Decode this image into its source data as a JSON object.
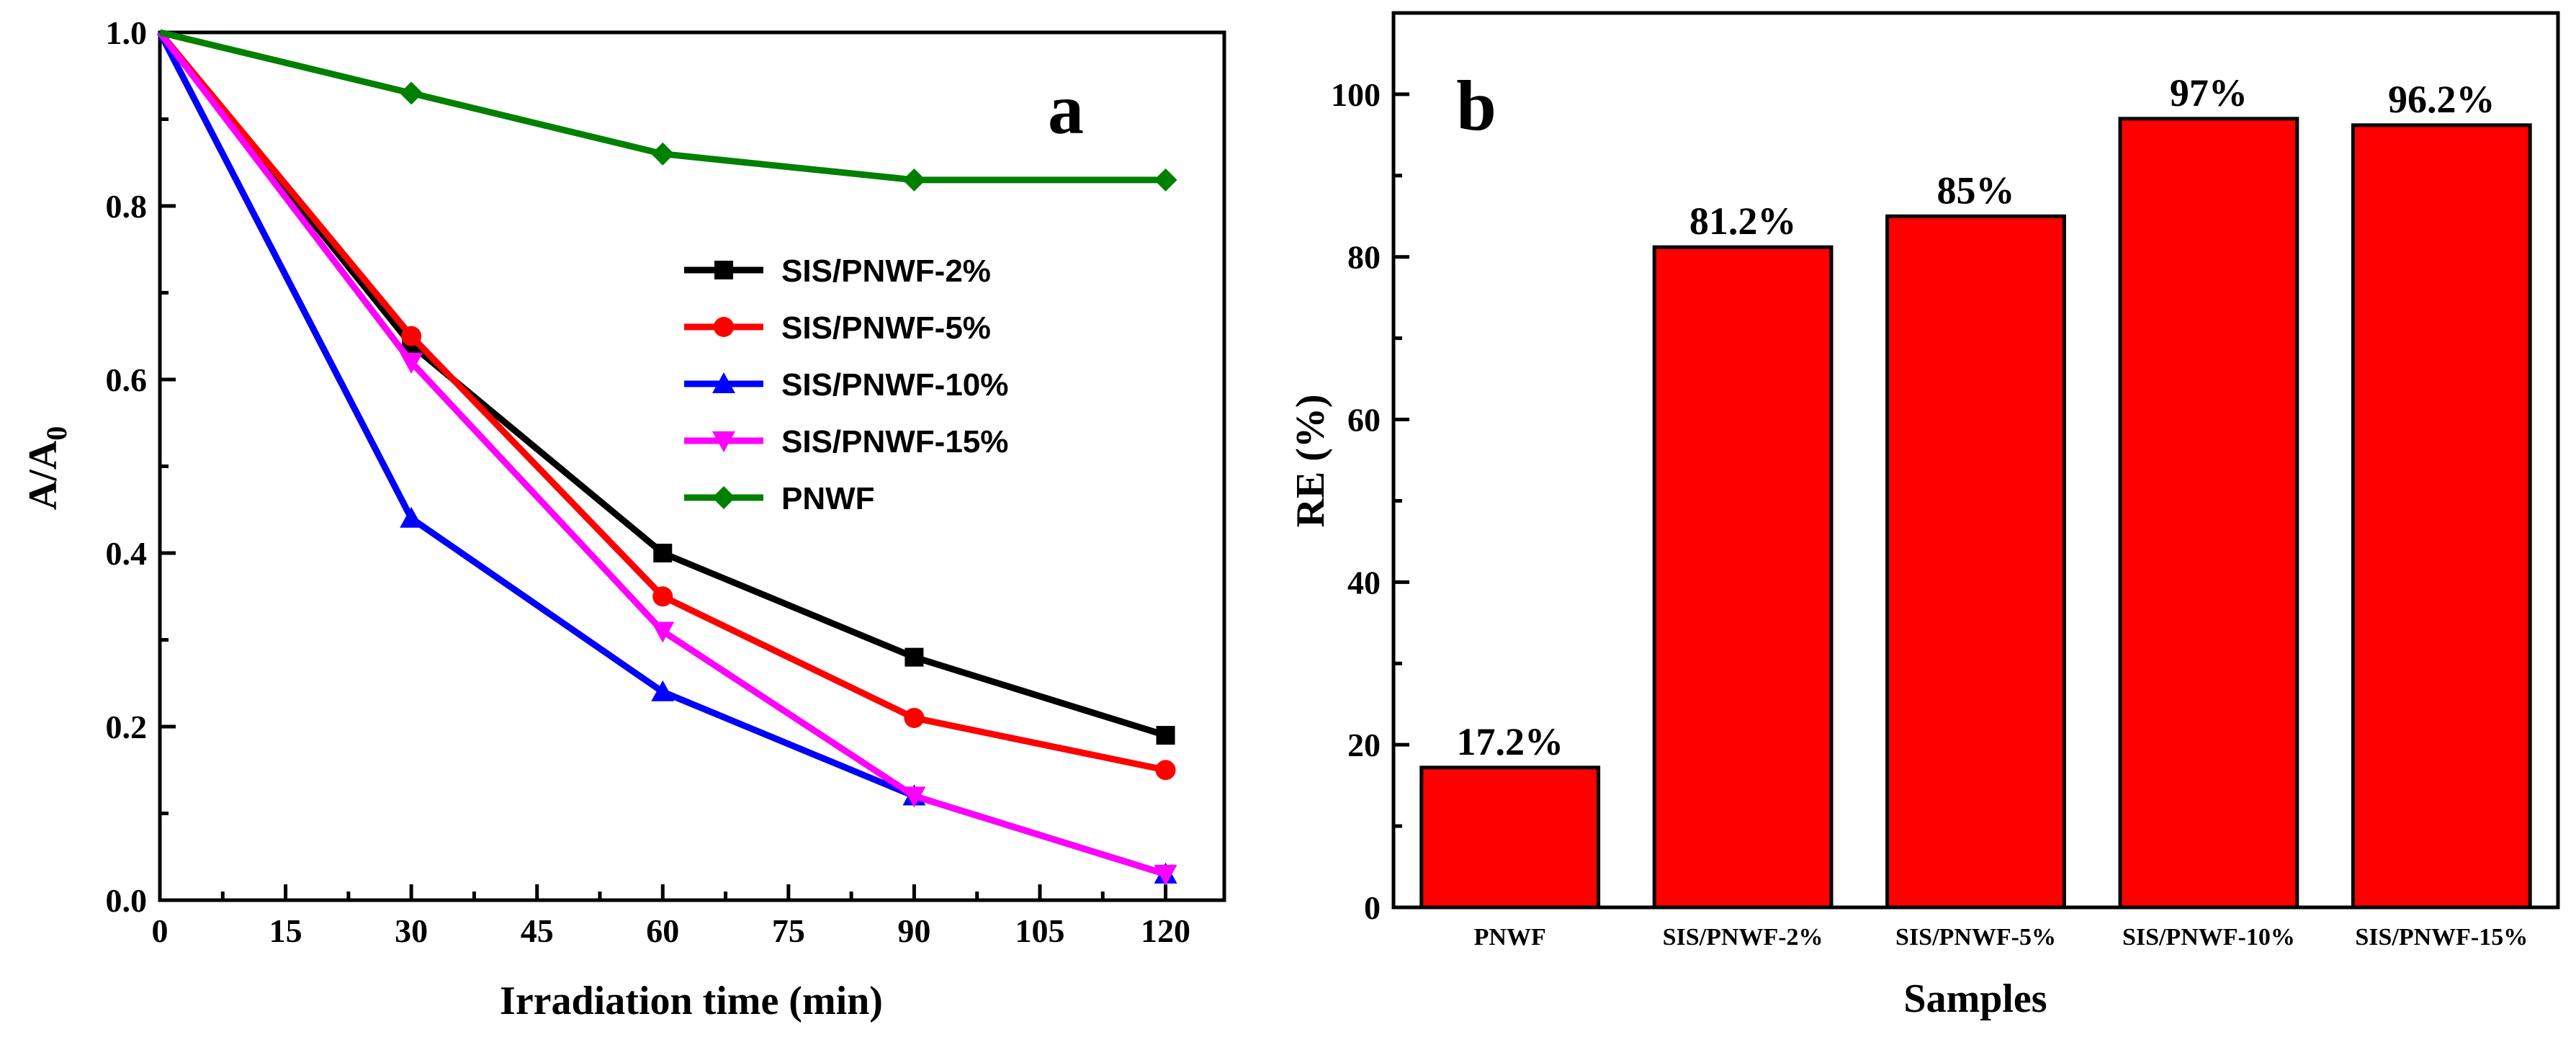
{
  "chart_data": [
    {
      "panel": "a",
      "type": "line",
      "xlabel": "Irradiation time (min)",
      "ylabel": "A/A",
      "ylabel_sub": "0",
      "xlim": [
        0,
        127
      ],
      "ylim": [
        0,
        1.0
      ],
      "xticks": [
        0,
        15,
        30,
        45,
        60,
        75,
        90,
        105,
        120
      ],
      "yticks": [
        0.0,
        0.2,
        0.4,
        0.6,
        0.8,
        1.0
      ],
      "ytick_labels": [
        "0.0",
        "0.2",
        "0.4",
        "0.6",
        "0.8",
        "1.0"
      ],
      "x": [
        0,
        30,
        60,
        90,
        120
      ],
      "legend_position": "center-right",
      "series": [
        {
          "name": "SIS/PNWF-2%",
          "color": "#000000",
          "marker": "square",
          "values": [
            1.0,
            0.64,
            0.4,
            0.28,
            0.19
          ]
        },
        {
          "name": "SIS/PNWF-5%",
          "color": "#ff0000",
          "marker": "circle",
          "values": [
            1.0,
            0.65,
            0.35,
            0.21,
            0.15
          ]
        },
        {
          "name": "SIS/PNWF-10%",
          "color": "#0000ff",
          "marker": "triangle-up",
          "values": [
            1.0,
            0.44,
            0.24,
            0.12,
            0.03
          ]
        },
        {
          "name": "SIS/PNWF-15%",
          "color": "#ff00ff",
          "marker": "triangle-down",
          "values": [
            1.0,
            0.62,
            0.31,
            0.12,
            0.03
          ]
        },
        {
          "name": "PNWF",
          "color": "#008000",
          "marker": "diamond",
          "values": [
            1.0,
            0.93,
            0.86,
            0.83,
            0.83
          ]
        }
      ]
    },
    {
      "panel": "b",
      "type": "bar",
      "xlabel": "Samples",
      "ylabel": "RE (%)",
      "ylim": [
        0,
        110
      ],
      "yticks": [
        0,
        20,
        40,
        60,
        80,
        100
      ],
      "categories": [
        "PNWF",
        "SIS/PNWF-2%",
        "SIS/PNWF-5%",
        "SIS/PNWF-10%",
        "SIS/PNWF-15%"
      ],
      "values": [
        17.2,
        81.2,
        85,
        97,
        96.2
      ],
      "value_labels": [
        "17.2%",
        "81.2%",
        "85%",
        "97%",
        "96.2%"
      ],
      "bar_color": "#ff0000"
    }
  ]
}
